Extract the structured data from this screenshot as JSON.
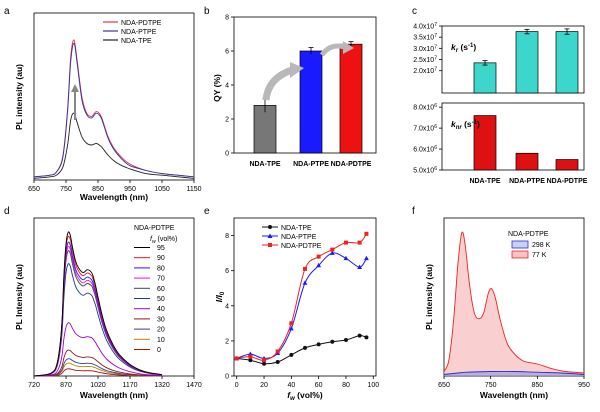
{
  "chart_data": [
    {
      "id": "a",
      "panel_label": "a",
      "type": "line",
      "xlabel": "Wavelength (nm)",
      "ylabel": "PL intensity (au)",
      "xlim": [
        650,
        1150
      ],
      "ylim": [
        0,
        1.05
      ],
      "xticks": [
        "650",
        "750",
        "850",
        "950",
        "1050",
        "1150"
      ],
      "series": [
        {
          "name": "NDA-PDTPE",
          "color": "#e8323c",
          "x": [
            650,
            700,
            720,
            740,
            755,
            765,
            775,
            785,
            800,
            815,
            830,
            845,
            860,
            880,
            900,
            925,
            950,
            1000,
            1050,
            1100,
            1150
          ],
          "y": [
            0.02,
            0.03,
            0.05,
            0.15,
            0.45,
            0.78,
            0.88,
            0.75,
            0.52,
            0.42,
            0.4,
            0.43,
            0.4,
            0.28,
            0.2,
            0.14,
            0.1,
            0.06,
            0.04,
            0.03,
            0.02
          ]
        },
        {
          "name": "NDA-PTPE",
          "color": "#2b3aa8",
          "x": [
            650,
            700,
            720,
            740,
            755,
            765,
            775,
            785,
            800,
            815,
            830,
            845,
            860,
            880,
            900,
            925,
            950,
            1000,
            1050,
            1100,
            1150
          ],
          "y": [
            0.02,
            0.03,
            0.05,
            0.14,
            0.43,
            0.75,
            0.86,
            0.73,
            0.5,
            0.41,
            0.39,
            0.42,
            0.39,
            0.27,
            0.19,
            0.13,
            0.09,
            0.06,
            0.04,
            0.03,
            0.02
          ]
        },
        {
          "name": "NDA-TPE",
          "color": "#222222",
          "x": [
            650,
            700,
            720,
            740,
            755,
            765,
            775,
            785,
            800,
            815,
            830,
            845,
            860,
            880,
            900,
            925,
            950,
            1000,
            1050,
            1100,
            1150
          ],
          "y": [
            0.01,
            0.02,
            0.03,
            0.08,
            0.22,
            0.38,
            0.42,
            0.36,
            0.27,
            0.23,
            0.22,
            0.23,
            0.21,
            0.16,
            0.12,
            0.09,
            0.07,
            0.04,
            0.03,
            0.02,
            0.01
          ]
        }
      ]
    },
    {
      "id": "b",
      "panel_label": "b",
      "type": "bar",
      "ylabel": "QY (%)",
      "ylim": [
        0,
        8
      ],
      "yticks": [
        "0",
        "2",
        "4",
        "6",
        "8"
      ],
      "categories": [
        "NDA-TPE",
        "NDA-PTPE",
        "NDA-PDTPE"
      ],
      "values": [
        2.8,
        6.0,
        6.4
      ],
      "errors": [
        0.4,
        0.2,
        0.15
      ],
      "colors": [
        "#777777",
        "#1a1aff",
        "#ee1111"
      ]
    },
    {
      "id": "c",
      "panel_label": "c",
      "type": "bar",
      "categories": [
        "NDA-TPE",
        "NDA-PTPE",
        "NDA-PDTPE"
      ],
      "top": {
        "ylabel": "kr (s-1)",
        "ylabel_main": "k",
        "ylabel_sub": "r",
        "ylabel_unit": " (s",
        "ylabel_sup": "-1",
        "ylabel_close": ")",
        "ylim": [
          10000000.0,
          40000000.0
        ],
        "yticks": [
          {
            "value": 20000000.0,
            "mantissa": "2.0x10",
            "exp": "7"
          },
          {
            "value": 25000000.0,
            "mantissa": "2.5x10",
            "exp": "7"
          },
          {
            "value": 30000000.0,
            "mantissa": "3.0x10",
            "exp": "7"
          },
          {
            "value": 35000000.0,
            "mantissa": "3.5x10",
            "exp": "7"
          },
          {
            "value": 40000000.0,
            "mantissa": "4.0x10",
            "exp": "7"
          }
        ],
        "values": [
          23500000.0,
          37500000.0,
          37500000.0
        ],
        "errors": [
          1000000.0,
          1000000.0,
          1200000.0
        ],
        "color": "#3dd6cc"
      },
      "bottom": {
        "ylabel": "knr (s-1)",
        "ylabel_main": "k",
        "ylabel_sub": "nr",
        "ylabel_unit": " (s",
        "ylabel_sup": "-1",
        "ylabel_close": ")",
        "ylim": [
          5000000.0,
          8200000.0
        ],
        "yticks": [
          {
            "value": 5000000.0,
            "mantissa": "5.0x10",
            "exp": "6"
          },
          {
            "value": 6000000.0,
            "mantissa": "6.0x10",
            "exp": "6"
          },
          {
            "value": 7000000.0,
            "mantissa": "7.0x10",
            "exp": "6"
          },
          {
            "value": 8000000.0,
            "mantissa": "8.0x10",
            "exp": "6"
          }
        ],
        "values": [
          7600000.0,
          5800000.0,
          5500000.0
        ],
        "color": "#dd1111"
      }
    },
    {
      "id": "d",
      "panel_label": "d",
      "type": "line",
      "xlabel": "Wavelength (nm)",
      "ylabel": "PL Intensity (au)",
      "xlim": [
        720,
        1470
      ],
      "ylim": [
        0,
        1.1
      ],
      "xticks": [
        "720",
        "870",
        "1020",
        "1170",
        "1320",
        "1470"
      ],
      "legend_title": "NDA-PDTPE",
      "legend_header_main": "f",
      "legend_header_sub": "w",
      "legend_header_unit": " (vol%)",
      "shape": {
        "x": [
          720,
          800,
          830,
          850,
          860,
          870,
          880,
          890,
          900,
          915,
          930,
          950,
          970,
          990,
          1000,
          1010,
          1020,
          1040,
          1060,
          1090,
          1120,
          1170,
          1220,
          1270,
          1320
        ],
        "y": [
          0.0,
          0.02,
          0.1,
          0.35,
          0.7,
          0.92,
          1.0,
          0.98,
          0.9,
          0.8,
          0.75,
          0.72,
          0.74,
          0.72,
          0.68,
          0.62,
          0.55,
          0.42,
          0.32,
          0.22,
          0.15,
          0.08,
          0.04,
          0.02,
          0.01
        ]
      },
      "series": [
        {
          "name": "95",
          "color": "#000000",
          "scale": 1.0
        },
        {
          "name": "90",
          "color": "#ee1111",
          "scale": 0.97
        },
        {
          "name": "80",
          "color": "#1a1aff",
          "scale": 0.93
        },
        {
          "name": "70",
          "color": "#dd11dd",
          "scale": 0.9
        },
        {
          "name": "60",
          "color": "#444444",
          "scale": 0.87
        },
        {
          "name": "50",
          "color": "#1a3a8a",
          "scale": 0.78
        },
        {
          "name": "40",
          "color": "#9b00d3",
          "scale": 0.37
        },
        {
          "name": "30",
          "color": "#8a1a1a",
          "scale": 0.18
        },
        {
          "name": "20",
          "color": "#3a3aaa",
          "scale": 0.12
        },
        {
          "name": "10",
          "color": "#aa8800",
          "scale": 0.09
        },
        {
          "name": "0",
          "color": "#aa1111",
          "scale": 0.05
        }
      ]
    },
    {
      "id": "e",
      "panel_label": "e",
      "type": "line",
      "xlabel_main": "f",
      "xlabel_sub": "w",
      "xlabel_unit": " (vol%)",
      "xlabel": "fw (vol%)",
      "ylabel_main": "I/I",
      "ylabel_sub": "0",
      "ylabel": "I/I0",
      "xlim": [
        -2,
        102
      ],
      "ylim": [
        0,
        9
      ],
      "xticks": [
        "0",
        "20",
        "40",
        "60",
        "80",
        "100"
      ],
      "yticks": [
        "0",
        "2",
        "4",
        "6",
        "8"
      ],
      "series": [
        {
          "name": "NDA-TPE",
          "color": "#111111",
          "marker": "circle",
          "x": [
            0,
            10,
            20,
            30,
            40,
            50,
            60,
            70,
            80,
            90,
            95
          ],
          "y": [
            1.0,
            0.9,
            0.7,
            0.8,
            1.2,
            1.6,
            1.8,
            1.95,
            2.05,
            2.3,
            2.2
          ]
        },
        {
          "name": "NDA-PTPE",
          "color": "#1a1aff",
          "marker": "triangle",
          "x": [
            0,
            10,
            20,
            30,
            40,
            50,
            60,
            70,
            80,
            90,
            95
          ],
          "y": [
            1.0,
            1.25,
            1.0,
            1.3,
            2.7,
            5.3,
            6.3,
            7.0,
            6.7,
            6.2,
            6.7
          ]
        },
        {
          "name": "NDA-PDTPE",
          "color": "#ee2222",
          "marker": "square",
          "x": [
            0,
            10,
            20,
            30,
            40,
            50,
            60,
            70,
            80,
            90,
            95
          ],
          "y": [
            1.0,
            1.1,
            0.9,
            1.4,
            3.0,
            6.1,
            6.8,
            7.2,
            7.6,
            7.6,
            8.1
          ]
        }
      ]
    },
    {
      "id": "f",
      "panel_label": "f",
      "type": "area",
      "xlabel": "Wavelength (nm)",
      "ylabel": "PL intensity (au)",
      "xlim": [
        650,
        950
      ],
      "ylim": [
        0,
        1.05
      ],
      "xticks": [
        "650",
        "750",
        "850",
        "950"
      ],
      "legend_title": "NDA-PDTPE",
      "series": [
        {
          "name": "298 K",
          "color": "#2233cc",
          "fill": "#7d8fe8",
          "x": [
            650,
            680,
            700,
            750,
            800,
            850,
            900,
            950
          ],
          "y": [
            0.01,
            0.02,
            0.025,
            0.03,
            0.03,
            0.025,
            0.02,
            0.01
          ]
        },
        {
          "name": "77 K",
          "color": "#ee2222",
          "fill": "#f4a0a0",
          "x": [
            650,
            660,
            670,
            680,
            688,
            695,
            705,
            715,
            725,
            735,
            745,
            752,
            760,
            770,
            785,
            800,
            820,
            850,
            880,
            910,
            950
          ],
          "y": [
            0.03,
            0.1,
            0.35,
            0.75,
            0.95,
            0.88,
            0.6,
            0.42,
            0.38,
            0.42,
            0.55,
            0.58,
            0.52,
            0.38,
            0.22,
            0.15,
            0.1,
            0.08,
            0.05,
            0.03,
            0.02
          ]
        }
      ]
    }
  ]
}
